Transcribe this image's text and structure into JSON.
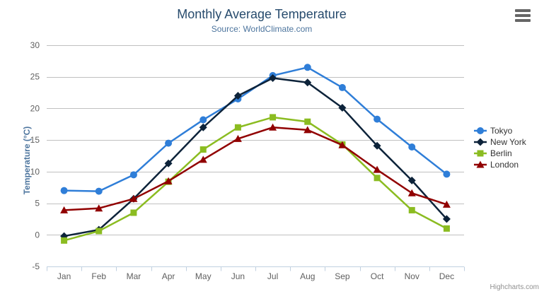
{
  "header": {
    "title": "Monthly Average Temperature",
    "subtitle": "Source: WorldClimate.com"
  },
  "toolbar": {
    "context_menu_icon": "hamburger-icon"
  },
  "credit_label": "Highcharts.com",
  "chart_data": {
    "type": "line",
    "title": "Monthly Average Temperature",
    "subtitle": "Source: WorldClimate.com",
    "xlabel": "",
    "ylabel": "Temperature (°C)",
    "categories": [
      "Jan",
      "Feb",
      "Mar",
      "Apr",
      "May",
      "Jun",
      "Jul",
      "Aug",
      "Sep",
      "Oct",
      "Nov",
      "Dec"
    ],
    "series": [
      {
        "name": "Tokyo",
        "color": "#2f7ed8",
        "marker": "circle",
        "values": [
          7.0,
          6.9,
          9.5,
          14.5,
          18.2,
          21.5,
          25.2,
          26.5,
          23.3,
          18.3,
          13.9,
          9.6
        ]
      },
      {
        "name": "New York",
        "color": "#0d233a",
        "marker": "diamond",
        "values": [
          -0.2,
          0.8,
          5.7,
          11.3,
          17.0,
          22.0,
          24.8,
          24.1,
          20.1,
          14.1,
          8.6,
          2.5
        ]
      },
      {
        "name": "Berlin",
        "color": "#8bbc21",
        "marker": "square",
        "values": [
          -0.9,
          0.6,
          3.5,
          8.4,
          13.5,
          17.0,
          18.6,
          17.9,
          14.3,
          9.0,
          3.9,
          1.0
        ]
      },
      {
        "name": "London",
        "color": "#910000",
        "marker": "triangle",
        "values": [
          3.9,
          4.2,
          5.7,
          8.5,
          11.9,
          15.2,
          17.0,
          16.6,
          14.2,
          10.3,
          6.6,
          4.8
        ]
      }
    ],
    "ylim": [
      -5,
      30
    ],
    "ytick_interval": 5,
    "grid": true,
    "legend_position": "right",
    "colors": {
      "grid_line": "#c0c0c0",
      "axis_line": "#c0d0e0",
      "axis_label": "#606060",
      "title": "#274b6d",
      "subtitle": "#4d759e",
      "legend_text": "#333333",
      "credit": "#909090"
    }
  }
}
